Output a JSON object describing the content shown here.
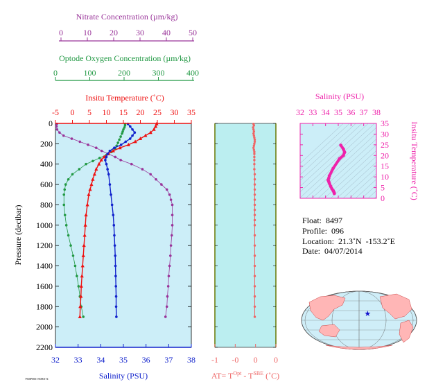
{
  "colors": {
    "nitrate": "#993399",
    "oxygen": "#229944",
    "temperature": "#ee1111",
    "salinity": "#1122cc",
    "deltaT": "#ee6666",
    "ts": "#ee22aa",
    "panel_bg": "#cceef8",
    "delta_bg": "#bbeef0"
  },
  "main_panel": {
    "ylabel": "Pressure (decibar)",
    "ylim": [
      0,
      2200
    ],
    "yticks": [
      0,
      200,
      400,
      600,
      800,
      1000,
      1200,
      1400,
      1600,
      1800,
      2000,
      2200
    ],
    "axes": {
      "nitrate": {
        "title": "Nitrate Concentration (µm/kg)",
        "range": [
          0,
          50
        ],
        "ticks": [
          0,
          10,
          20,
          30,
          40,
          50
        ]
      },
      "oxygen": {
        "title": "Optode Oxygen Concentration (µm/kg)",
        "range": [
          0,
          400
        ],
        "ticks": [
          0,
          100,
          200,
          300,
          400
        ]
      },
      "temperature": {
        "title": "Insitu Temperature (˚C)",
        "range": [
          -5,
          35
        ],
        "ticks": [
          -5,
          0,
          5,
          10,
          15,
          20,
          25,
          30,
          35
        ]
      },
      "salinity": {
        "title": "Salinity (PSU)",
        "range": [
          32,
          38
        ],
        "ticks": [
          32,
          33,
          34,
          35,
          36,
          37,
          38
        ]
      }
    }
  },
  "chart_data": [
    {
      "type": "line",
      "title": "",
      "ylabel": "Pressure (decibar)",
      "ylim": [
        0,
        2200
      ],
      "series": [
        {
          "name": "Nitrate Concentration (µm/kg)",
          "pressure": [
            5,
            30,
            60,
            90,
            120,
            150,
            180,
            210,
            240,
            270,
            300,
            330,
            360,
            400,
            450,
            500,
            550,
            600,
            650,
            700,
            750,
            800,
            900,
            1000,
            1100,
            1200,
            1300,
            1400,
            1500,
            1600,
            1700,
            1800,
            1900
          ],
          "values": [
            0.5,
            0.4,
            0.6,
            1.5,
            3,
            6,
            9,
            12,
            15,
            17,
            19.5,
            22,
            24,
            28,
            32,
            35,
            37,
            39,
            41,
            42,
            42.5,
            43,
            43,
            43,
            42.8,
            42.5,
            42.3,
            42,
            41.7,
            41.5,
            41.2,
            41,
            40.5
          ]
        },
        {
          "name": "Optode Oxygen Concentration (µm/kg)",
          "pressure": [
            5,
            20,
            40,
            60,
            80,
            100,
            130,
            160,
            190,
            220,
            250,
            280,
            310,
            340,
            370,
            400,
            450,
            500,
            550,
            600,
            650,
            700,
            800,
            900,
            1000,
            1100,
            1200,
            1300,
            1400,
            1500,
            1600,
            1700,
            1800,
            1900
          ],
          "values": [
            205,
            205,
            203,
            200,
            198,
            196,
            192,
            188,
            184,
            180,
            176,
            165,
            150,
            130,
            110,
            90,
            70,
            50,
            38,
            30,
            27,
            25,
            25,
            28,
            32,
            38,
            45,
            52,
            58,
            63,
            68,
            72,
            76,
            82
          ]
        },
        {
          "name": "Insitu Temperature (˚C)",
          "pressure": [
            5,
            30,
            60,
            90,
            120,
            150,
            180,
            210,
            240,
            270,
            300,
            330,
            360,
            400,
            450,
            500,
            550,
            600,
            650,
            700,
            800,
            900,
            1000,
            1100,
            1200,
            1300,
            1400,
            1500,
            1600,
            1700,
            1800,
            1900
          ],
          "values": [
            24.8,
            24.5,
            24,
            23,
            21.5,
            20,
            18.5,
            16.5,
            14,
            12,
            10.5,
            9.3,
            8.5,
            7.8,
            7,
            6.5,
            6,
            5.6,
            5.2,
            4.8,
            4.4,
            4,
            3.8,
            3.6,
            3.4,
            3.2,
            3,
            2.8,
            2.6,
            2.5,
            2.3,
            2.2
          ]
        },
        {
          "name": "Salinity (PSU)",
          "pressure": [
            5,
            30,
            60,
            90,
            120,
            150,
            180,
            210,
            240,
            270,
            300,
            330,
            360,
            400,
            450,
            500,
            600,
            700,
            800,
            900,
            1000,
            1100,
            1200,
            1300,
            1400,
            1500,
            1600,
            1700,
            1800,
            1900
          ],
          "values": [
            35.2,
            35.3,
            35.4,
            35.5,
            35.4,
            35.3,
            35.1,
            34.9,
            34.6,
            34.4,
            34.3,
            34.25,
            34.2,
            34.25,
            34.3,
            34.35,
            34.4,
            34.45,
            34.5,
            34.55,
            34.58,
            34.6,
            34.62,
            34.64,
            34.65,
            34.66,
            34.67,
            34.68,
            34.68,
            34.69
          ]
        }
      ]
    },
    {
      "type": "scatter",
      "title": "",
      "xlabel_parts": [
        "AT= T",
        "Opt",
        " - T",
        "SBE",
        " (˚C)"
      ],
      "xlim": [
        -1,
        0.5
      ],
      "xticks": [
        -1,
        -0.5,
        0,
        0.5
      ],
      "xtick_labels": [
        "-1",
        "-0",
        "0",
        "0"
      ],
      "ylim": [
        0,
        2200
      ],
      "series": [
        {
          "name": "ΔT",
          "pressure": [
            5,
            20,
            40,
            60,
            80,
            100,
            120,
            140,
            160,
            180,
            200,
            220,
            240,
            260,
            280,
            300,
            330,
            360,
            400,
            450,
            500,
            550,
            600,
            650,
            700,
            750,
            800,
            850,
            900,
            950,
            1000,
            1100,
            1200,
            1300,
            1400,
            1500,
            1600,
            1700,
            1800,
            1900
          ],
          "values": [
            -0.05,
            -0.04,
            -0.06,
            -0.05,
            -0.04,
            -0.05,
            -0.04,
            -0.03,
            -0.02,
            -0.02,
            -0.03,
            -0.04,
            -0.05,
            -0.04,
            -0.03,
            -0.03,
            -0.03,
            -0.03,
            -0.03,
            -0.03,
            -0.02,
            -0.02,
            -0.02,
            -0.02,
            -0.02,
            -0.02,
            -0.02,
            -0.02,
            -0.02,
            -0.02,
            -0.02,
            -0.02,
            -0.02,
            -0.02,
            -0.02,
            -0.02,
            -0.02,
            -0.02,
            -0.02,
            -0.02
          ]
        }
      ]
    },
    {
      "type": "scatter",
      "title": "Salinity (PSU)",
      "xlabel": "Salinity (PSU)",
      "ylabel": "Insitu Temperature (˚C)",
      "xlim": [
        32,
        38
      ],
      "xticks": [
        32,
        33,
        34,
        35,
        36,
        37,
        38
      ],
      "ylim": [
        0,
        35
      ],
      "yticks": [
        0,
        5,
        10,
        15,
        20,
        25,
        30,
        35
      ],
      "series": [
        {
          "name": "T-S",
          "x": [
            35.2,
            35.4,
            35.5,
            35.4,
            35.1,
            34.6,
            34.3,
            34.25,
            34.2,
            34.25,
            34.3,
            34.4,
            34.5,
            34.6,
            34.65,
            34.68,
            34.69
          ],
          "y": [
            24.8,
            23,
            21.5,
            20,
            18.5,
            14,
            10.5,
            9.3,
            8.5,
            7.8,
            7,
            5.6,
            4.4,
            3.6,
            3.0,
            2.5,
            2.2
          ]
        }
      ]
    }
  ],
  "float_info": {
    "float": "Float:  8497",
    "profile": "Profile:  096",
    "location": "Location:  21.3˚N  -153.2˚E",
    "date": "Date:  04/07/2014"
  },
  "map": {
    "marker_lon": -153.2,
    "marker_lat": 21.3
  },
  "footer_tag": "7930P0001-0000174"
}
